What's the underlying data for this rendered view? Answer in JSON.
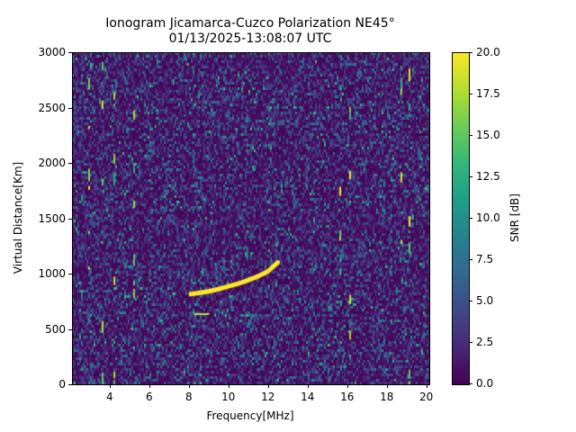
{
  "chart_data": {
    "type": "heatmap",
    "title": "Ionogram Jicamarca-Cuzco Polarization NE45°",
    "subtitle": "01/13/2025-13:08:07 UTC",
    "xlabel": "Frequency[MHz]",
    "ylabel": "Virtual Distance[Km]",
    "colorbar_label": "SNR [dB]",
    "colormap": "viridis",
    "xlim": [
      2.1,
      20.15
    ],
    "ylim": [
      0,
      3000
    ],
    "clim": [
      0,
      20
    ],
    "xticks": [
      4,
      6,
      8,
      10,
      12,
      14,
      16,
      18,
      20
    ],
    "xtick_labels": [
      "4",
      "6",
      "8",
      "10",
      "12",
      "14",
      "16",
      "18",
      "20"
    ],
    "yticks": [
      0,
      500,
      1000,
      1500,
      2000,
      2500,
      3000
    ],
    "ytick_labels": [
      "0",
      "500",
      "1000",
      "1500",
      "2000",
      "2500",
      "3000"
    ],
    "colorbar_ticks": [
      0,
      2.5,
      5,
      7.5,
      10,
      12.5,
      15,
      17.5,
      20
    ],
    "colorbar_tick_labels": [
      "0.0",
      "2.5",
      "5.0",
      "7.5",
      "10.0",
      "12.5",
      "15.0",
      "17.5",
      "20.0"
    ],
    "grid": false,
    "background_snr_db": "noise ~0-8 dB with sparse speckles",
    "trace": {
      "name": "F-layer echo",
      "snr_db": 20,
      "points": [
        {
          "f": 8.1,
          "d": 815
        },
        {
          "f": 8.5,
          "d": 825
        },
        {
          "f": 9.0,
          "d": 840
        },
        {
          "f": 9.5,
          "d": 860
        },
        {
          "f": 10.0,
          "d": 885
        },
        {
          "f": 10.5,
          "d": 910
        },
        {
          "f": 11.0,
          "d": 940
        },
        {
          "f": 11.5,
          "d": 975
        },
        {
          "f": 12.0,
          "d": 1020
        },
        {
          "f": 12.3,
          "d": 1070
        },
        {
          "f": 12.5,
          "d": 1100
        }
      ]
    },
    "secondary_trace": {
      "name": "lower echo",
      "snr_db": 18,
      "points": [
        {
          "f": 8.3,
          "d": 635
        },
        {
          "f": 9.0,
          "d": 635
        }
      ]
    },
    "vertical_interference_lines_mhz": [
      2.9,
      3.6,
      4.2,
      5.2,
      15.6,
      16.1,
      18.7,
      19.1
    ]
  }
}
